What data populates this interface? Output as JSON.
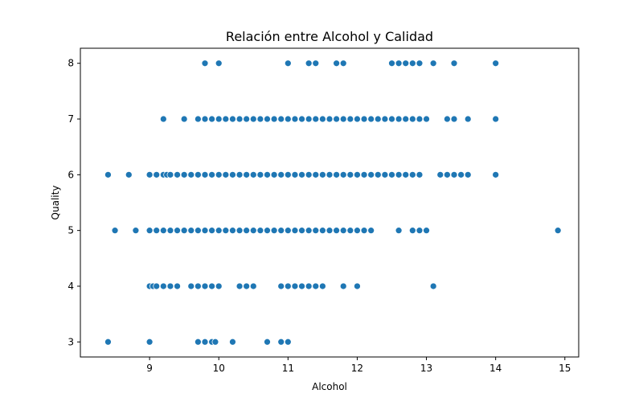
{
  "chart_data": {
    "type": "scatter",
    "title": "Relación entre Alcohol y Calidad",
    "xlabel": "Alcohol",
    "ylabel": "Quality",
    "xlim": [
      8.0,
      15.2
    ],
    "ylim": [
      2.73,
      8.27
    ],
    "xticks": [
      9,
      10,
      11,
      12,
      13,
      14,
      15
    ],
    "yticks": [
      3,
      4,
      5,
      6,
      7,
      8
    ],
    "grid": false,
    "legend": "none",
    "color": "#1f77b4",
    "points": {
      "8": [
        9.8,
        10.0,
        11.0,
        11.3,
        11.4,
        11.7,
        11.8,
        12.5,
        12.6,
        12.7,
        12.8,
        12.9,
        13.1,
        13.4,
        14.0
      ],
      "7": [
        9.2,
        9.5,
        9.7,
        9.8,
        9.9,
        10.0,
        10.1,
        10.2,
        10.3,
        10.4,
        10.5,
        10.6,
        10.7,
        10.8,
        10.9,
        11.0,
        11.1,
        11.2,
        11.3,
        11.4,
        11.5,
        11.6,
        11.7,
        11.8,
        11.9,
        12.0,
        12.1,
        12.2,
        12.3,
        12.4,
        12.5,
        12.6,
        12.7,
        12.8,
        12.9,
        13.0,
        13.3,
        13.4,
        13.6,
        14.0
      ],
      "6": [
        8.4,
        8.7,
        9.0,
        9.1,
        9.2,
        9.25,
        9.3,
        9.4,
        9.5,
        9.6,
        9.7,
        9.8,
        9.9,
        10.0,
        10.1,
        10.2,
        10.3,
        10.4,
        10.5,
        10.6,
        10.7,
        10.8,
        10.9,
        11.0,
        11.1,
        11.2,
        11.3,
        11.4,
        11.5,
        11.6,
        11.7,
        11.8,
        11.9,
        12.0,
        12.1,
        12.2,
        12.3,
        12.4,
        12.5,
        12.6,
        12.7,
        12.8,
        12.9,
        13.2,
        13.3,
        13.4,
        13.5,
        13.6,
        14.0
      ],
      "5": [
        8.5,
        8.8,
        9.0,
        9.1,
        9.2,
        9.3,
        9.4,
        9.5,
        9.6,
        9.7,
        9.8,
        9.9,
        10.0,
        10.1,
        10.2,
        10.3,
        10.4,
        10.5,
        10.6,
        10.7,
        10.8,
        10.9,
        11.0,
        11.1,
        11.2,
        11.3,
        11.4,
        11.5,
        11.6,
        11.7,
        11.8,
        11.9,
        12.0,
        12.1,
        12.2,
        12.6,
        12.8,
        12.9,
        13.0,
        14.9
      ],
      "4": [
        9.0,
        9.05,
        9.1,
        9.2,
        9.3,
        9.4,
        9.6,
        9.7,
        9.8,
        9.9,
        10.0,
        10.3,
        10.4,
        10.5,
        10.9,
        11.0,
        11.1,
        11.2,
        11.3,
        11.4,
        11.5,
        11.8,
        12.0,
        13.1
      ],
      "3": [
        8.4,
        9.0,
        9.7,
        9.8,
        9.9,
        9.95,
        10.2,
        10.7,
        10.9,
        11.0
      ]
    }
  }
}
